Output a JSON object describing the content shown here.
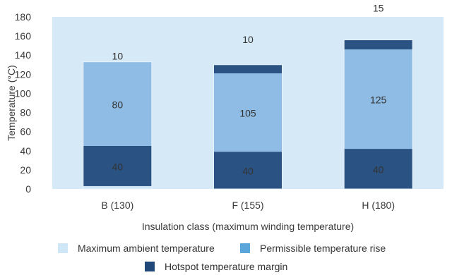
{
  "chart_data": {
    "type": "bar",
    "stacked": true,
    "categories": [
      "B (130)",
      "F (155)",
      "H (180)"
    ],
    "series": [
      {
        "name": "Hotspot temperature margin",
        "color": "#20497a",
        "values": [
          40,
          40,
          40
        ]
      },
      {
        "name": "Permissible temperature rise",
        "color": "#8fbce4",
        "values": [
          80,
          105,
          125
        ]
      },
      {
        "name": "Maximum ambient temperature",
        "color": "#cfe6f6",
        "values": [
          10,
          10,
          15
        ]
      }
    ],
    "bar_labels": [
      [
        "40",
        "80",
        "10"
      ],
      [
        "40",
        "105",
        "10"
      ],
      [
        "40",
        "125",
        "15"
      ]
    ],
    "bar_segments": [
      [
        {
          "from": 0,
          "to": 3,
          "color": "#cfe6f6"
        },
        {
          "from": 3,
          "to": 45,
          "color": "#2a5282"
        },
        {
          "from": 45,
          "to": 133,
          "color": "#8fbce4"
        }
      ],
      [
        {
          "from": 0,
          "to": 39,
          "color": "#2a5282"
        },
        {
          "from": 39,
          "to": 121,
          "color": "#8fbce4"
        },
        {
          "from": 121,
          "to": 130,
          "color": "#2a5282"
        }
      ],
      [
        {
          "from": 0,
          "to": 42,
          "color": "#2a5282"
        },
        {
          "from": 42,
          "to": 146,
          "color": "#8fbce4"
        },
        {
          "from": 146,
          "to": 156,
          "color": "#2a5282"
        }
      ]
    ],
    "xlabel": "Insulation class (maximum winding temperature)",
    "ylabel": "Temperature (°C)",
    "ylim": [
      0,
      180
    ],
    "yticks": [
      0,
      20,
      40,
      60,
      80,
      100,
      120,
      140,
      160,
      180
    ],
    "plot_background": "#d6e9f7",
    "grid": false,
    "legend_position": "bottom"
  },
  "legend": {
    "ambient": {
      "label": "Maximum ambient temperature",
      "color": "#cfe6f6"
    },
    "rise": {
      "label": "Permissible temperature rise",
      "color": "#5aa5da"
    },
    "hotspot": {
      "label": "Hotspot temperature margin",
      "color": "#20497a"
    }
  }
}
